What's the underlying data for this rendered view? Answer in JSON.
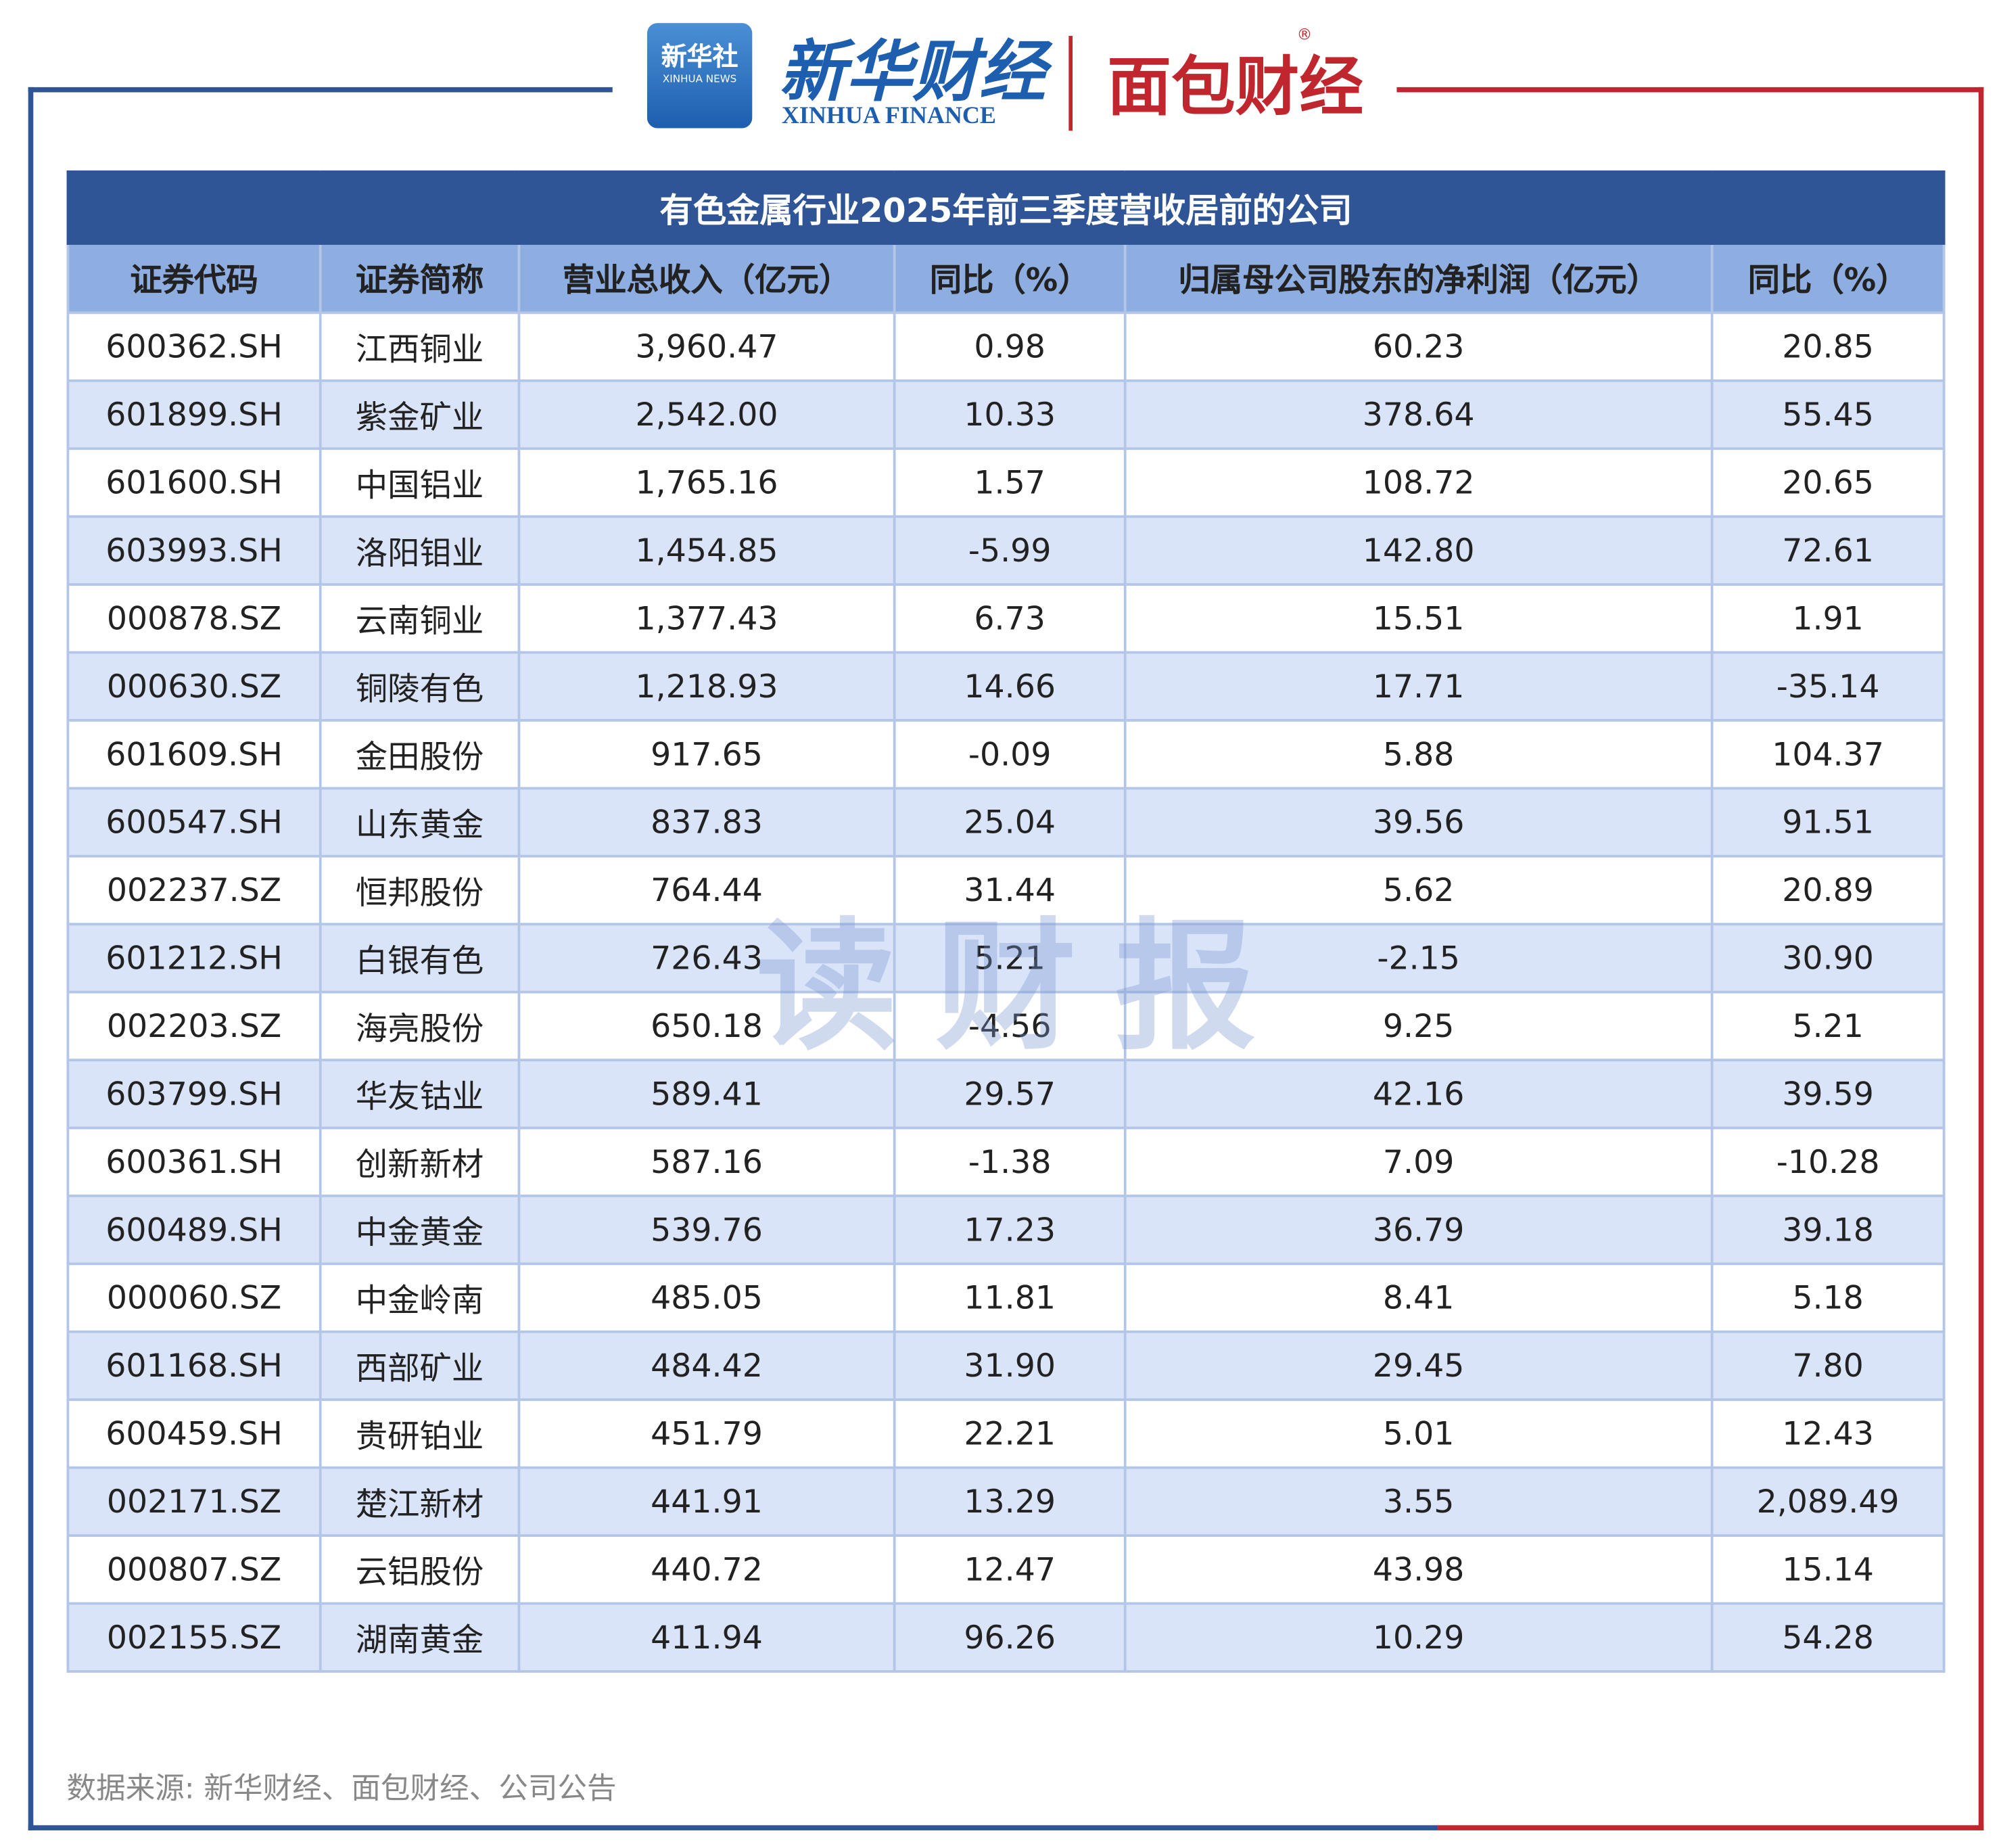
{
  "header": {
    "badge_cn": "新华社",
    "badge_en": "XINHUA NEWS",
    "brand_cn": "新华财经",
    "brand_en": "XINHUA FINANCE",
    "partner": "面包财经",
    "registered": "®"
  },
  "watermark": "读财报",
  "table": {
    "title": "有色金属行业2025年前三季度营收居前的公司",
    "columns": [
      "证券代码",
      "证券简称",
      "营业总收入（亿元）",
      "同比（%）",
      "归属母公司股东的净利润（亿元）",
      "同比（%）"
    ],
    "rows": [
      [
        "600362.SH",
        "江西铜业",
        "3,960.47",
        "0.98",
        "60.23",
        "20.85"
      ],
      [
        "601899.SH",
        "紫金矿业",
        "2,542.00",
        "10.33",
        "378.64",
        "55.45"
      ],
      [
        "601600.SH",
        "中国铝业",
        "1,765.16",
        "1.57",
        "108.72",
        "20.65"
      ],
      [
        "603993.SH",
        "洛阳钼业",
        "1,454.85",
        "-5.99",
        "142.80",
        "72.61"
      ],
      [
        "000878.SZ",
        "云南铜业",
        "1,377.43",
        "6.73",
        "15.51",
        "1.91"
      ],
      [
        "000630.SZ",
        "铜陵有色",
        "1,218.93",
        "14.66",
        "17.71",
        "-35.14"
      ],
      [
        "601609.SH",
        "金田股份",
        "917.65",
        "-0.09",
        "5.88",
        "104.37"
      ],
      [
        "600547.SH",
        "山东黄金",
        "837.83",
        "25.04",
        "39.56",
        "91.51"
      ],
      [
        "002237.SZ",
        "恒邦股份",
        "764.44",
        "31.44",
        "5.62",
        "20.89"
      ],
      [
        "601212.SH",
        "白银有色",
        "726.43",
        "5.21",
        "-2.15",
        "30.90"
      ],
      [
        "002203.SZ",
        "海亮股份",
        "650.18",
        "-4.56",
        "9.25",
        "5.21"
      ],
      [
        "603799.SH",
        "华友钴业",
        "589.41",
        "29.57",
        "42.16",
        "39.59"
      ],
      [
        "600361.SH",
        "创新新材",
        "587.16",
        "-1.38",
        "7.09",
        "-10.28"
      ],
      [
        "600489.SH",
        "中金黄金",
        "539.76",
        "17.23",
        "36.79",
        "39.18"
      ],
      [
        "000060.SZ",
        "中金岭南",
        "485.05",
        "11.81",
        "8.41",
        "5.18"
      ],
      [
        "601168.SH",
        "西部矿业",
        "484.42",
        "31.90",
        "29.45",
        "7.80"
      ],
      [
        "600459.SH",
        "贵研铂业",
        "451.79",
        "22.21",
        "5.01",
        "12.43"
      ],
      [
        "002171.SZ",
        "楚江新材",
        "441.91",
        "13.29",
        "3.55",
        "2,089.49"
      ],
      [
        "000807.SZ",
        "云铝股份",
        "440.72",
        "12.47",
        "43.98",
        "15.14"
      ],
      [
        "002155.SZ",
        "湖南黄金",
        "411.94",
        "96.26",
        "10.29",
        "54.28"
      ]
    ]
  },
  "footer": {
    "source": "数据来源: 新华财经、面包财经、公司公告"
  }
}
